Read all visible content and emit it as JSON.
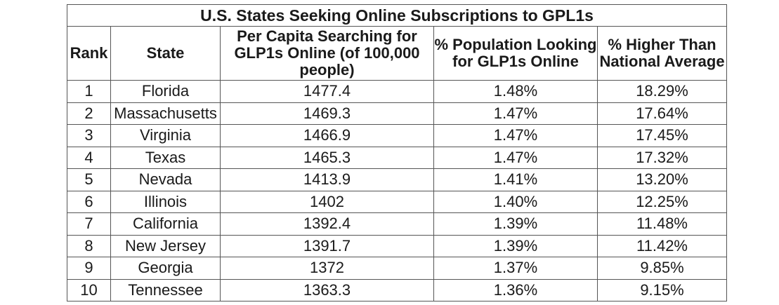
{
  "chart_data": {
    "type": "table",
    "title": "U.S. States Seeking Online Subscriptions to GPL1s",
    "columns": [
      "Rank",
      "State",
      "Per Capita Searching for GLP1s Online (of 100,000 people)",
      "% Population Looking for GLP1s Online",
      "% Higher Than National Average"
    ],
    "rows": [
      [
        "1",
        "Florida",
        "1477.4",
        "1.48%",
        "18.29%"
      ],
      [
        "2",
        "Massachusetts",
        "1469.3",
        "1.47%",
        "17.64%"
      ],
      [
        "3",
        "Virginia",
        "1466.9",
        "1.47%",
        "17.45%"
      ],
      [
        "4",
        "Texas",
        "1465.3",
        "1.47%",
        "17.32%"
      ],
      [
        "5",
        "Nevada",
        "1413.9",
        "1.41%",
        "13.20%"
      ],
      [
        "6",
        "Illinois",
        "1402",
        "1.40%",
        "12.25%"
      ],
      [
        "7",
        "California",
        "1392.4",
        "1.39%",
        "11.48%"
      ],
      [
        "8",
        "New Jersey",
        "1391.7",
        "1.39%",
        "11.42%"
      ],
      [
        "9",
        "Georgia",
        "1372",
        "1.37%",
        "9.85%"
      ],
      [
        "10",
        "Tennessee",
        "1363.3",
        "1.36%",
        "9.15%"
      ]
    ]
  }
}
